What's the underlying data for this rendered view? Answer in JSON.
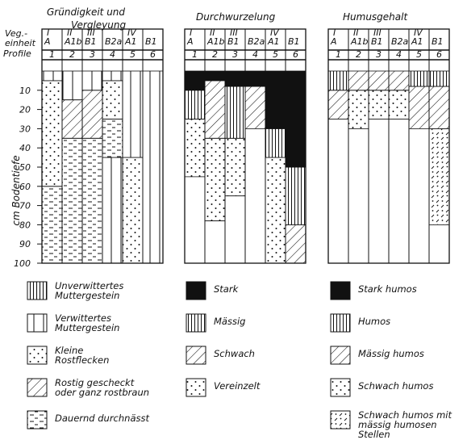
{
  "titles": {
    "panel1_line1": "Gründigkeit und",
    "panel1_line2": "Vergleyung",
    "panel2": "Durchwurzelung",
    "panel3": "Humusgehalt"
  },
  "header_labels": {
    "veg_line1": "Veg.-",
    "veg_line2": "einheit",
    "profile": "Profile"
  },
  "axis": {
    "ylabel": "cm Bodentiefe",
    "ticks": [
      "10",
      "20",
      "30",
      "40",
      "50",
      "60",
      "70",
      "80",
      "90",
      "100"
    ]
  },
  "columns": {
    "groups": [
      "I",
      "II",
      "III",
      "IV"
    ],
    "veg": [
      "A",
      "A1b",
      "B1",
      "B2a",
      "A1",
      "B1"
    ],
    "profiles": [
      "1",
      "2",
      "3",
      "4",
      "5",
      "6"
    ]
  },
  "legend1": [
    {
      "pattern": "unverwittert",
      "lines": [
        "Unverwittertes",
        "Muttergestein"
      ]
    },
    {
      "pattern": "verwittert",
      "lines": [
        "Verwittertes",
        "Muttergestein"
      ]
    },
    {
      "pattern": "dots",
      "lines": [
        "Kleine",
        "Rostflecken"
      ]
    },
    {
      "pattern": "diag",
      "lines": [
        "Rostig gescheckt",
        "oder ganz rostbraun"
      ]
    },
    {
      "pattern": "dashes",
      "lines": [
        "Dauernd durchnässt"
      ]
    }
  ],
  "legend2": [
    {
      "pattern": "black",
      "lines": [
        "Stark"
      ]
    },
    {
      "pattern": "vlines",
      "lines": [
        "Mässig"
      ]
    },
    {
      "pattern": "diag",
      "lines": [
        "Schwach"
      ]
    },
    {
      "pattern": "dots",
      "lines": [
        "Vereinzelt"
      ]
    }
  ],
  "legend3": [
    {
      "pattern": "black",
      "lines": [
        "Stark humos"
      ]
    },
    {
      "pattern": "vlines",
      "lines": [
        "Humos"
      ]
    },
    {
      "pattern": "diag",
      "lines": [
        "Mässig humos"
      ]
    },
    {
      "pattern": "dots",
      "lines": [
        "Schwach humos"
      ]
    },
    {
      "pattern": "dotdiag",
      "lines": [
        "Schwach humos mit",
        "mässig humosen",
        "Stellen"
      ]
    }
  ],
  "profiles": {
    "panel1": [
      [
        {
          "from": 0,
          "to": 5,
          "pattern": "verwittert"
        },
        {
          "from": 5,
          "to": 60,
          "pattern": "dots"
        },
        {
          "from": 60,
          "to": 100,
          "pattern": "dashes"
        }
      ],
      [
        {
          "from": 0,
          "to": 15,
          "pattern": "verwittert"
        },
        {
          "from": 15,
          "to": 35,
          "pattern": "diag"
        },
        {
          "from": 35,
          "to": 100,
          "pattern": "dashes"
        }
      ],
      [
        {
          "from": 0,
          "to": 10,
          "pattern": "verwittert"
        },
        {
          "from": 10,
          "to": 35,
          "pattern": "diag"
        },
        {
          "from": 35,
          "to": 100,
          "pattern": "dashes"
        }
      ],
      [
        {
          "from": 0,
          "to": 5,
          "pattern": "verwittert"
        },
        {
          "from": 5,
          "to": 25,
          "pattern": "dots"
        },
        {
          "from": 25,
          "to": 45,
          "pattern": "dashes"
        },
        {
          "from": 45,
          "to": 100,
          "pattern": "verwittert"
        }
      ],
      [
        {
          "from": 0,
          "to": 45,
          "pattern": "verwittert"
        },
        {
          "from": 45,
          "to": 100,
          "pattern": "dots"
        }
      ],
      [
        {
          "from": 0,
          "to": 100,
          "pattern": "verwittert"
        }
      ]
    ],
    "panel2": [
      [
        {
          "from": 0,
          "to": 10,
          "pattern": "black"
        },
        {
          "from": 10,
          "to": 25,
          "pattern": "vlines"
        },
        {
          "from": 25,
          "to": 55,
          "pattern": "dots"
        },
        {
          "from": 55,
          "to": 100,
          "pattern": "blank"
        }
      ],
      [
        {
          "from": 0,
          "to": 5,
          "pattern": "black"
        },
        {
          "from": 5,
          "to": 35,
          "pattern": "diag"
        },
        {
          "from": 35,
          "to": 78,
          "pattern": "dots"
        },
        {
          "from": 78,
          "to": 100,
          "pattern": "blank"
        }
      ],
      [
        {
          "from": 0,
          "to": 8,
          "pattern": "black"
        },
        {
          "from": 8,
          "to": 35,
          "pattern": "vlines"
        },
        {
          "from": 35,
          "to": 65,
          "pattern": "dots"
        },
        {
          "from": 65,
          "to": 100,
          "pattern": "blank"
        }
      ],
      [
        {
          "from": 0,
          "to": 8,
          "pattern": "black"
        },
        {
          "from": 8,
          "to": 30,
          "pattern": "diag"
        },
        {
          "from": 30,
          "to": 100,
          "pattern": "blank"
        }
      ],
      [
        {
          "from": 0,
          "to": 30,
          "pattern": "black"
        },
        {
          "from": 30,
          "to": 45,
          "pattern": "vlines"
        },
        {
          "from": 45,
          "to": 100,
          "pattern": "dots"
        }
      ],
      [
        {
          "from": 0,
          "to": 50,
          "pattern": "black"
        },
        {
          "from": 50,
          "to": 80,
          "pattern": "vlines"
        },
        {
          "from": 80,
          "to": 100,
          "pattern": "diag"
        }
      ]
    ],
    "panel3": [
      [
        {
          "from": 0,
          "to": 10,
          "pattern": "vlines"
        },
        {
          "from": 10,
          "to": 25,
          "pattern": "diag"
        },
        {
          "from": 25,
          "to": 100,
          "pattern": "blank"
        }
      ],
      [
        {
          "from": 0,
          "to": 10,
          "pattern": "diag"
        },
        {
          "from": 10,
          "to": 30,
          "pattern": "dots"
        },
        {
          "from": 30,
          "to": 100,
          "pattern": "blank"
        }
      ],
      [
        {
          "from": 0,
          "to": 10,
          "pattern": "diag"
        },
        {
          "from": 10,
          "to": 25,
          "pattern": "dots"
        },
        {
          "from": 25,
          "to": 100,
          "pattern": "blank"
        }
      ],
      [
        {
          "from": 0,
          "to": 10,
          "pattern": "diag"
        },
        {
          "from": 10,
          "to": 25,
          "pattern": "dots"
        },
        {
          "from": 25,
          "to": 100,
          "pattern": "blank"
        }
      ],
      [
        {
          "from": 0,
          "to": 8,
          "pattern": "vlines"
        },
        {
          "from": 8,
          "to": 30,
          "pattern": "diag"
        },
        {
          "from": 30,
          "to": 100,
          "pattern": "blank"
        }
      ],
      [
        {
          "from": 0,
          "to": 8,
          "pattern": "vlines"
        },
        {
          "from": 8,
          "to": 30,
          "pattern": "diag"
        },
        {
          "from": 30,
          "to": 80,
          "pattern": "dotdiag"
        },
        {
          "from": 80,
          "to": 100,
          "pattern": "blank"
        }
      ]
    ]
  }
}
